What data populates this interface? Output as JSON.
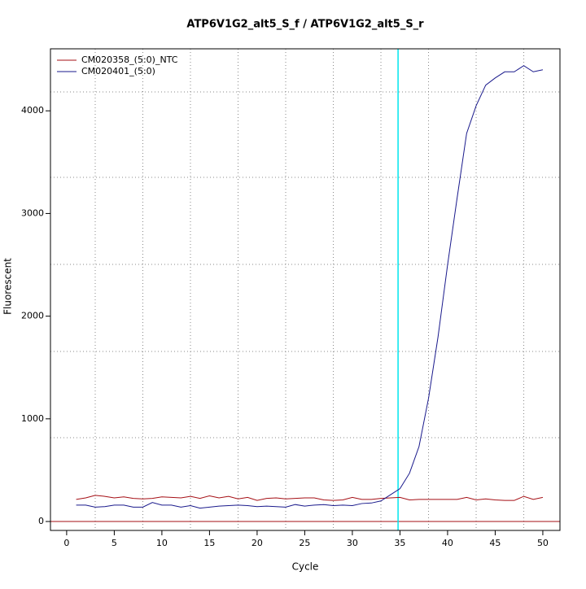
{
  "chart_data": {
    "type": "line",
    "title": "ATP6V1G2_alt5_S_f / ATP6V1G2_alt5_S_r",
    "xlabel": "Cycle",
    "ylabel": "Fluorescent",
    "x": [
      1,
      2,
      3,
      4,
      5,
      6,
      7,
      8,
      9,
      10,
      11,
      12,
      13,
      14,
      15,
      16,
      17,
      18,
      19,
      20,
      21,
      22,
      23,
      24,
      25,
      26,
      27,
      28,
      29,
      30,
      31,
      32,
      33,
      34,
      35,
      36,
      37,
      38,
      39,
      40,
      41,
      42,
      43,
      44,
      45,
      46,
      47,
      48,
      49,
      50
    ],
    "series": [
      {
        "name": "CM020358_(5:0)_NTC",
        "color": "#a50f15",
        "values": [
          215,
          230,
          255,
          245,
          230,
          240,
          225,
          220,
          225,
          240,
          235,
          230,
          245,
          225,
          250,
          230,
          245,
          220,
          235,
          205,
          225,
          230,
          220,
          225,
          230,
          230,
          210,
          205,
          210,
          235,
          215,
          215,
          225,
          230,
          235,
          210,
          215,
          215,
          215,
          215,
          215,
          235,
          210,
          220,
          210,
          205,
          205,
          245,
          215,
          235
        ]
      },
      {
        "name": "CM020401_(5:0)",
        "color": "#1a1a8c",
        "values": [
          160,
          160,
          140,
          145,
          160,
          160,
          140,
          140,
          185,
          160,
          160,
          140,
          155,
          130,
          140,
          150,
          155,
          160,
          155,
          145,
          150,
          145,
          140,
          165,
          150,
          160,
          165,
          155,
          160,
          155,
          175,
          180,
          200,
          260,
          320,
          470,
          730,
          1200,
          1800,
          2500,
          3150,
          3780,
          4050,
          4250,
          4320,
          4380,
          4380,
          4440,
          4380,
          4400
        ]
      }
    ],
    "xlim": [
      -1.7,
      51.8
    ],
    "ylim": [
      -87,
      4604
    ],
    "xticks": [
      0,
      5,
      10,
      15,
      20,
      25,
      30,
      35,
      40,
      45,
      50
    ],
    "yticks": [
      0,
      1000,
      2000,
      3000,
      4000
    ],
    "xgrid": [
      3,
      8,
      13,
      18,
      23,
      28,
      33,
      38,
      43,
      48
    ],
    "ygrid": [
      816,
      1656,
      2504,
      3352,
      4184
    ],
    "vline": {
      "value": 34.8,
      "color": "#00e5ee"
    },
    "hline": {
      "value": 0,
      "color": "#a50f15"
    },
    "legend": "top-left"
  }
}
